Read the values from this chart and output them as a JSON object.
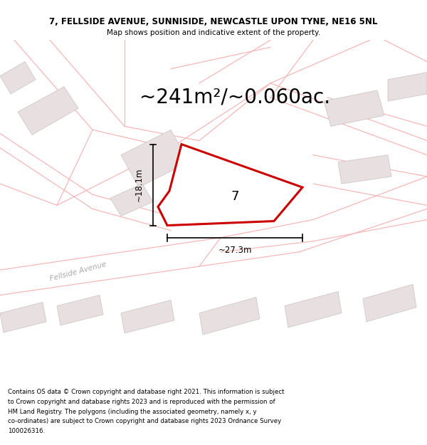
{
  "title_line1": "7, FELLSIDE AVENUE, SUNNISIDE, NEWCASTLE UPON TYNE, NE16 5NL",
  "title_line2": "Map shows position and indicative extent of the property.",
  "area_text": "~241m²/~0.060ac.",
  "dim_height": "~18.1m",
  "dim_width": "~27.3m",
  "property_number": "7",
  "footer_lines": [
    "Contains OS data © Crown copyright and database right 2021. This information is subject",
    "to Crown copyright and database rights 2023 and is reproduced with the permission of",
    "HM Land Registry. The polygons (including the associated geometry, namely x, y",
    "co-ordinates) are subject to Crown copyright and database rights 2023 Ordnance Survey",
    "100026316."
  ],
  "bg_color": "#ffffff",
  "map_bg": "#ffffff",
  "road_color": "#f5b8b8",
  "building_color": "#e8e0e0",
  "building_edge": "#d0c8c8",
  "highlight_color": "#cc0000",
  "title_fontsize": 8.5,
  "subtitle_fontsize": 7.5,
  "area_fontsize": 20,
  "dim_fontsize": 8.5,
  "footer_fontsize": 6.2,
  "property_label_fontsize": 13
}
